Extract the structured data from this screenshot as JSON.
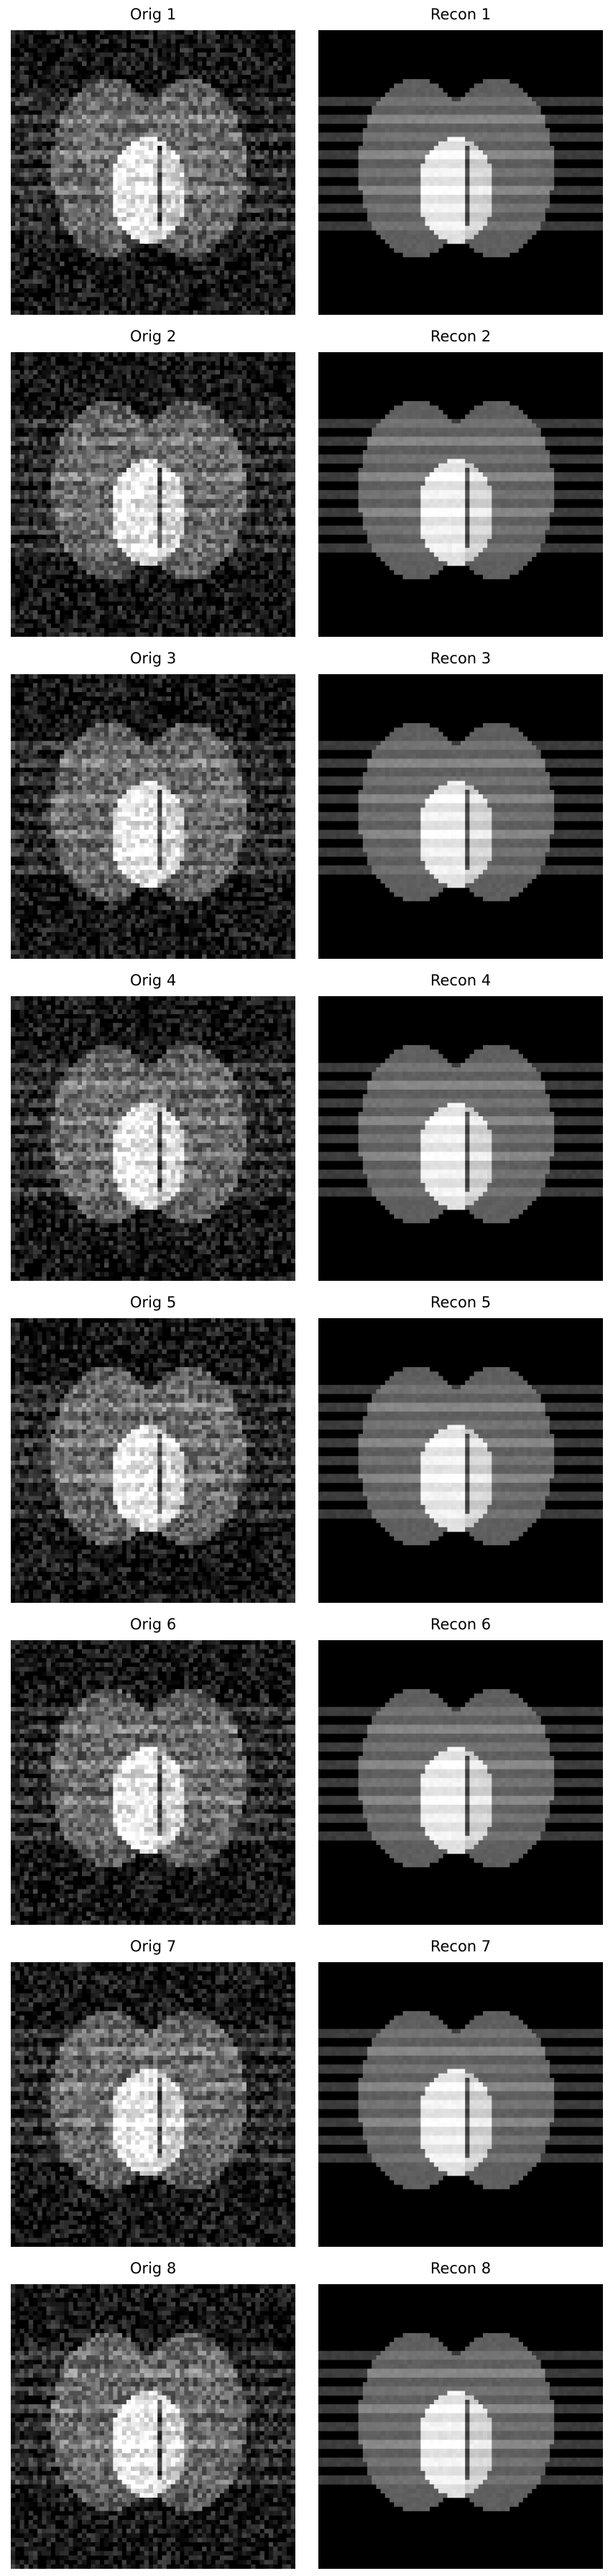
{
  "panels": [
    {
      "orig_title": "Orig 1",
      "recon_title": "Recon 1"
    },
    {
      "orig_title": "Orig 2",
      "recon_title": "Recon 2"
    },
    {
      "orig_title": "Orig 3",
      "recon_title": "Recon 3"
    },
    {
      "orig_title": "Orig 4",
      "recon_title": "Recon 4"
    },
    {
      "orig_title": "Orig 5",
      "recon_title": "Recon 5"
    },
    {
      "orig_title": "Orig 6",
      "recon_title": "Recon 6"
    },
    {
      "orig_title": "Orig 7",
      "recon_title": "Recon 7"
    },
    {
      "orig_title": "Orig 8",
      "recon_title": "Recon 8"
    }
  ],
  "image_kind": {
    "orig": "noisy-phantom",
    "recon": "denoised-phantom"
  },
  "colors": {
    "background": "#000000",
    "ellipse": "#5a5a5a",
    "overlap": "#c8c8c8",
    "band": "#a0a0a0"
  }
}
